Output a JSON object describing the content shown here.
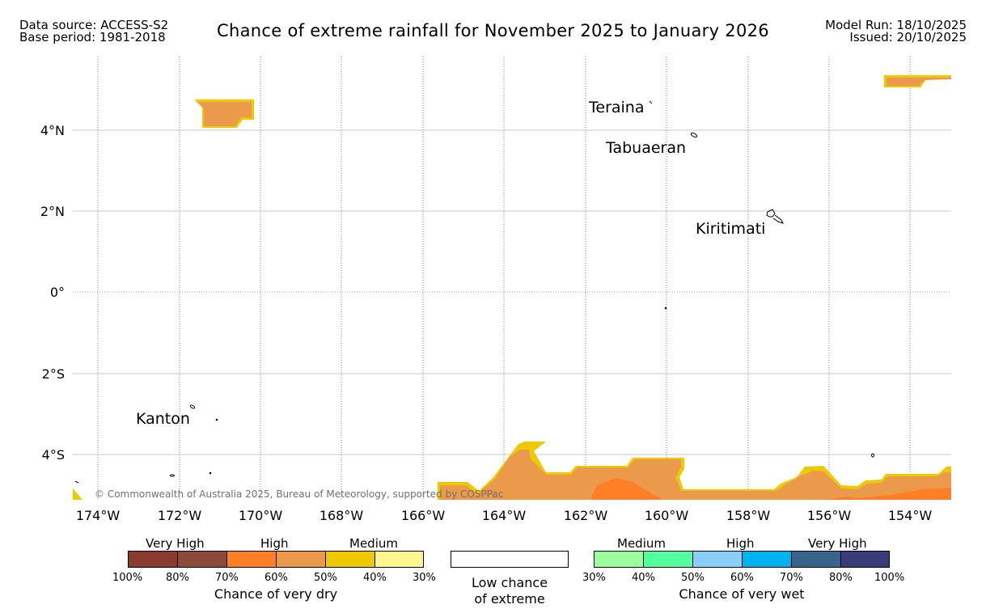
{
  "header": {
    "source_line": "Data source: ACCESS-S2",
    "base_line": "Base period: 1981-2018",
    "title": "Chance of extreme rainfall for November 2025 to January 2026",
    "model_run": "Model Run: 18/10/2025",
    "issued": "Issued: 20/10/2025"
  },
  "map": {
    "lat_labels": [
      "4°N",
      "2°N",
      "0°",
      "2°S",
      "4°S"
    ],
    "lon_labels": [
      "174°W",
      "172°W",
      "170°W",
      "168°W",
      "166°W",
      "164°W",
      "162°W",
      "160°W",
      "158°W",
      "156°W",
      "154°W"
    ],
    "places": [
      "Teraina",
      "Tabuaeran",
      "Kiritimati",
      "Kanton"
    ],
    "copyright": "© Commonwealth of Australia 2025, Bureau of Meteorology, supported by COSPPac"
  },
  "legend": {
    "dry": {
      "categories": [
        "Very High",
        "High",
        "Medium"
      ],
      "colors": [
        "#8b3a32",
        "#8b4a3a",
        "#ff7f27",
        "#eb9a4b",
        "#eec900",
        "#fff68f"
      ],
      "percents": [
        "100%",
        "80%",
        "70%",
        "60%",
        "50%",
        "40%",
        "30%"
      ],
      "label": "Chance of very dry"
    },
    "low": {
      "line1": "Low chance",
      "line2": "of extreme"
    },
    "wet": {
      "categories": [
        "Medium",
        "High",
        "Very High"
      ],
      "colors": [
        "#9aff9a",
        "#54ff9f",
        "#87cefa",
        "#00b2ee",
        "#36648b",
        "#3b3b7a"
      ],
      "percents": [
        "30%",
        "40%",
        "50%",
        "60%",
        "70%",
        "80%",
        "100%"
      ],
      "label": "Chance of very wet"
    }
  }
}
